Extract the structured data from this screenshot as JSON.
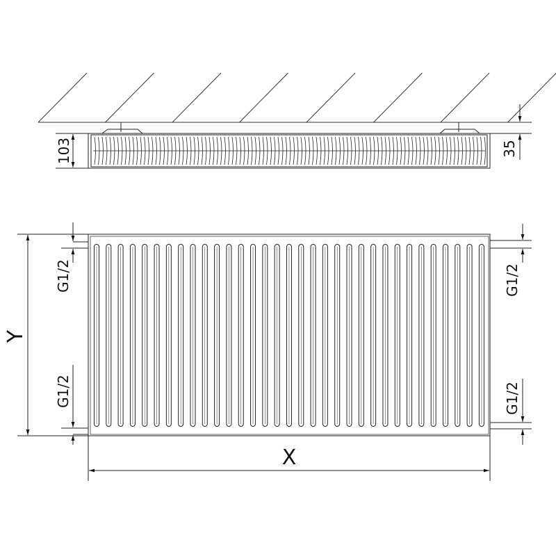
{
  "labels": {
    "depth": "103",
    "wall_gap": "35",
    "width": "X",
    "height": "Y",
    "connection_top_left": "G1/2",
    "connection_bottom_left": "G1/2",
    "connection_top_right": "G1/2",
    "connection_bottom_right": "G1/2"
  },
  "colors": {
    "line": "#222222",
    "background": "#ffffff"
  }
}
